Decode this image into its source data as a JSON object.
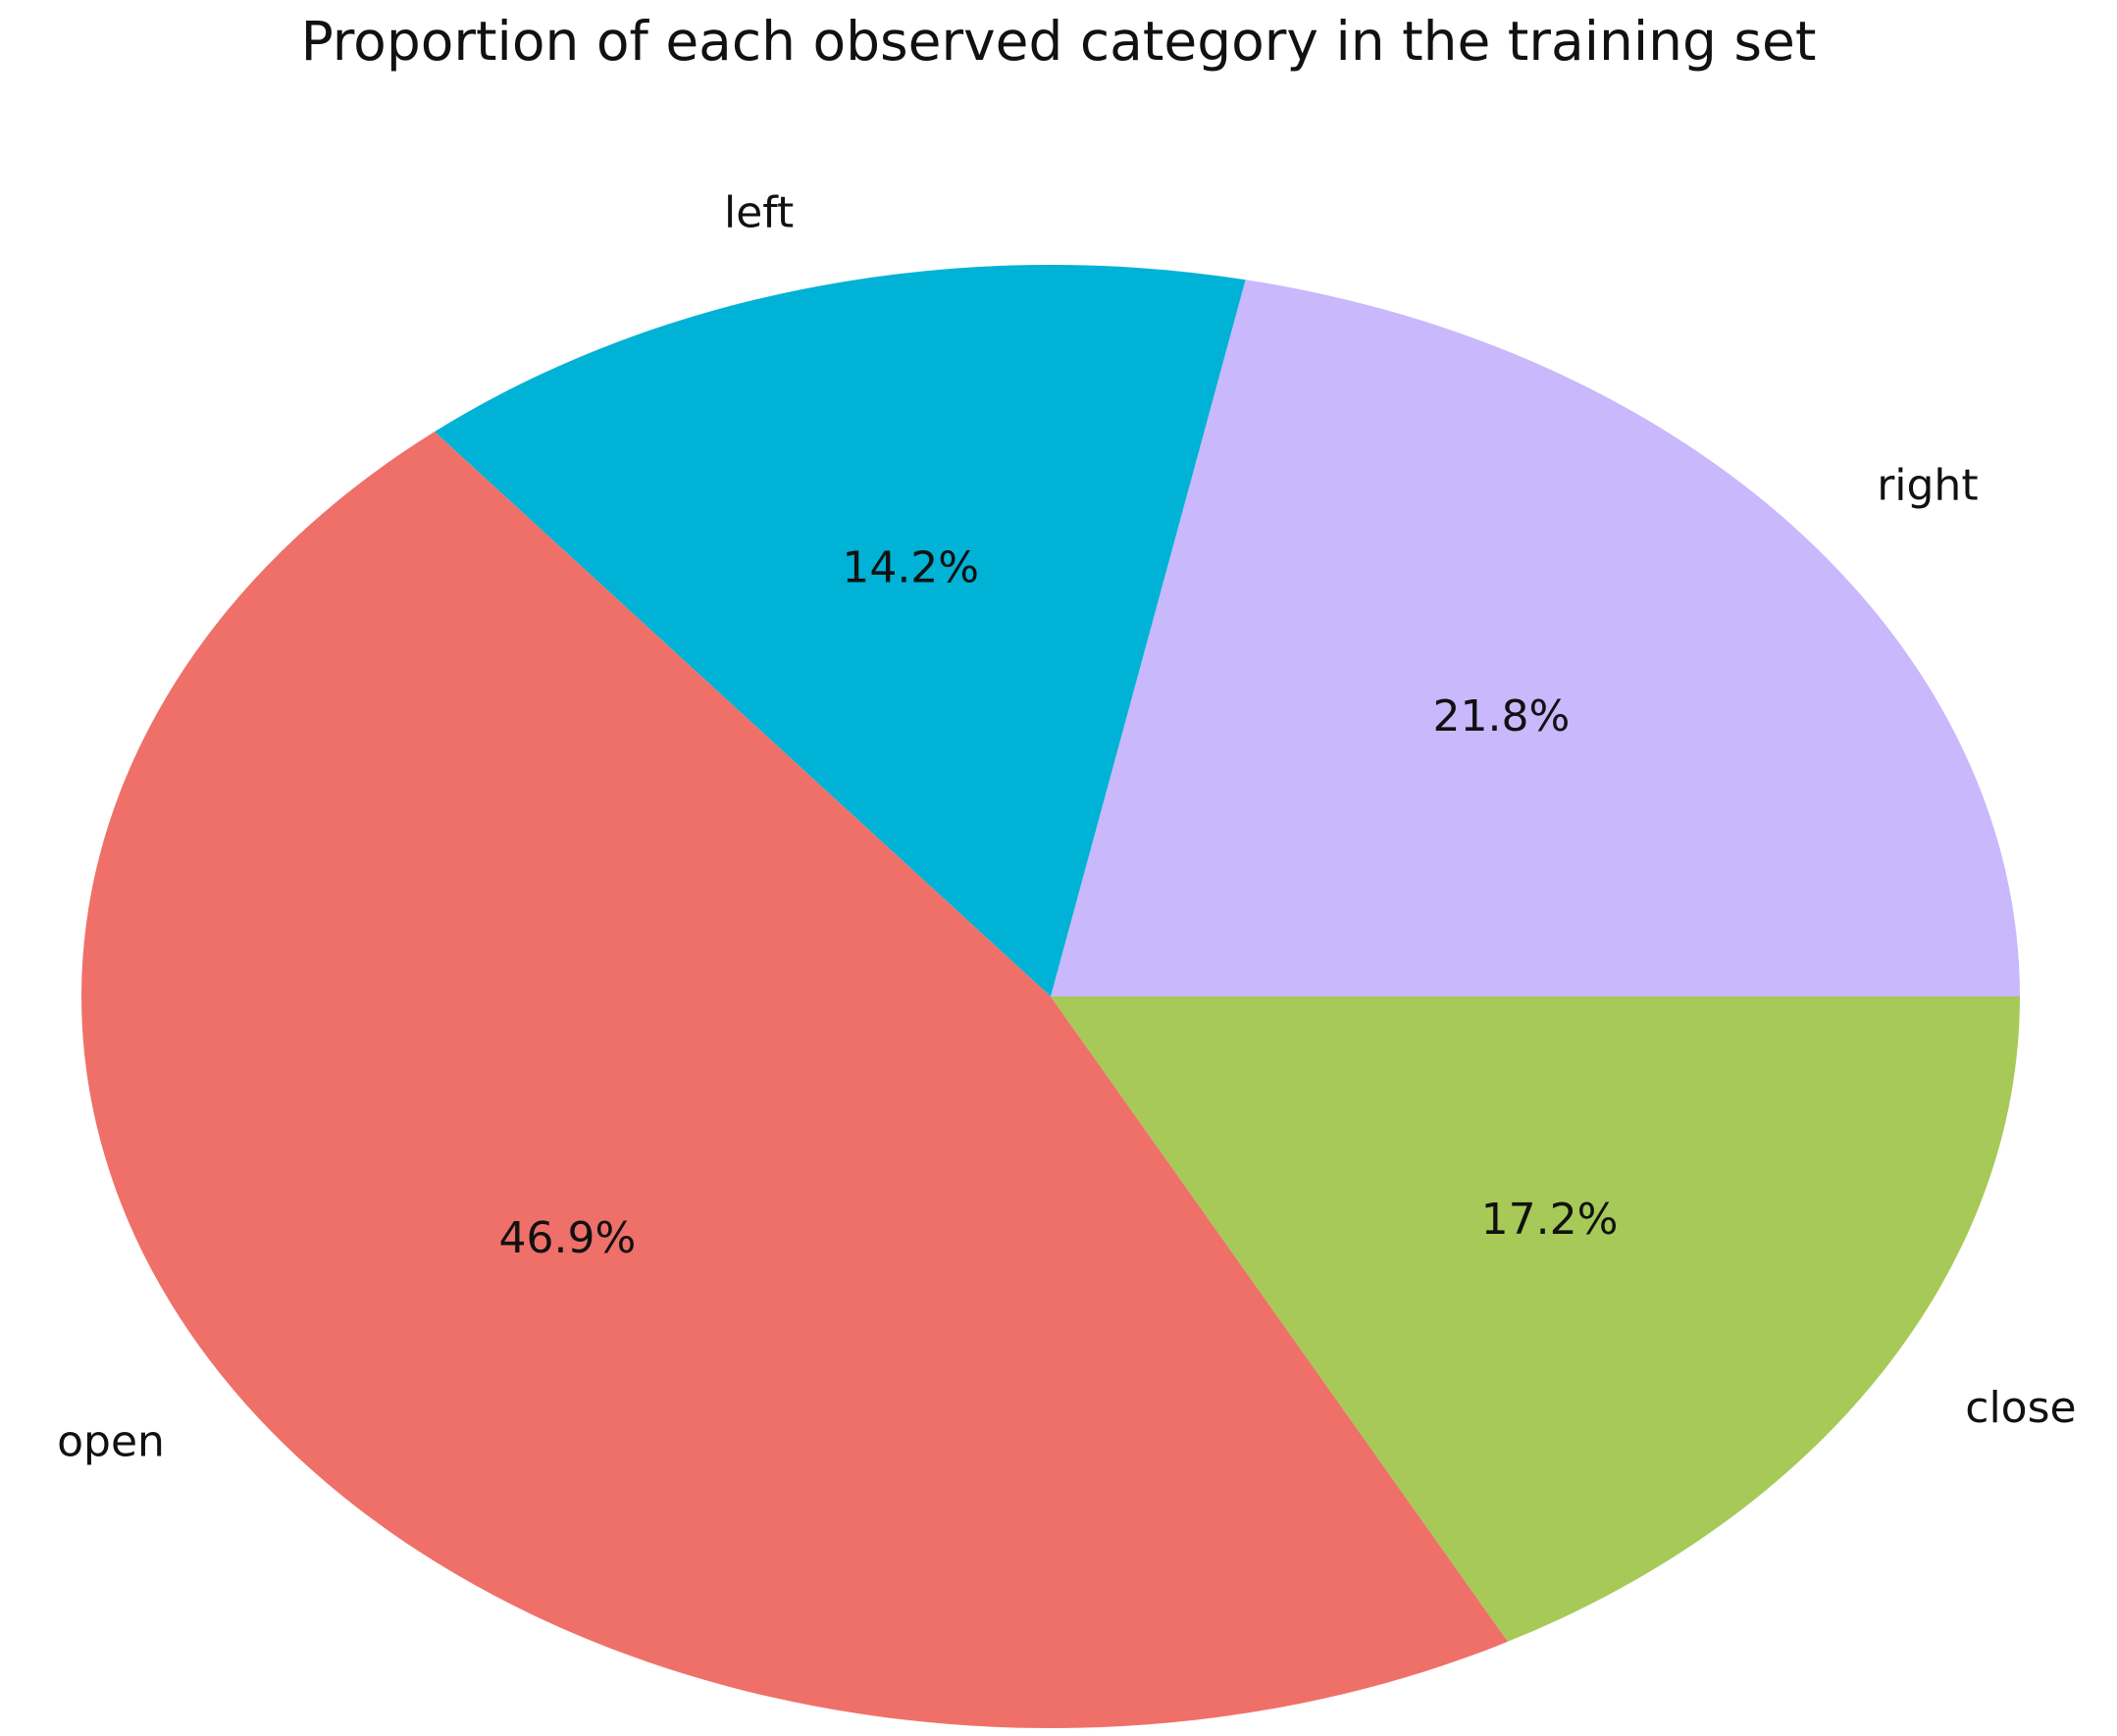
{
  "chart_data": {
    "type": "pie",
    "title": "Proportion of each observed category in the training set",
    "categories": [
      "right",
      "left",
      "open",
      "close"
    ],
    "values": [
      21.8,
      14.2,
      46.9,
      17.2
    ],
    "value_labels": [
      "21.8%",
      "14.2%",
      "46.9%",
      "17.2%"
    ],
    "colors": [
      "#c9b8fc",
      "#00b2d6",
      "#ef7068",
      "#a6c957"
    ]
  }
}
